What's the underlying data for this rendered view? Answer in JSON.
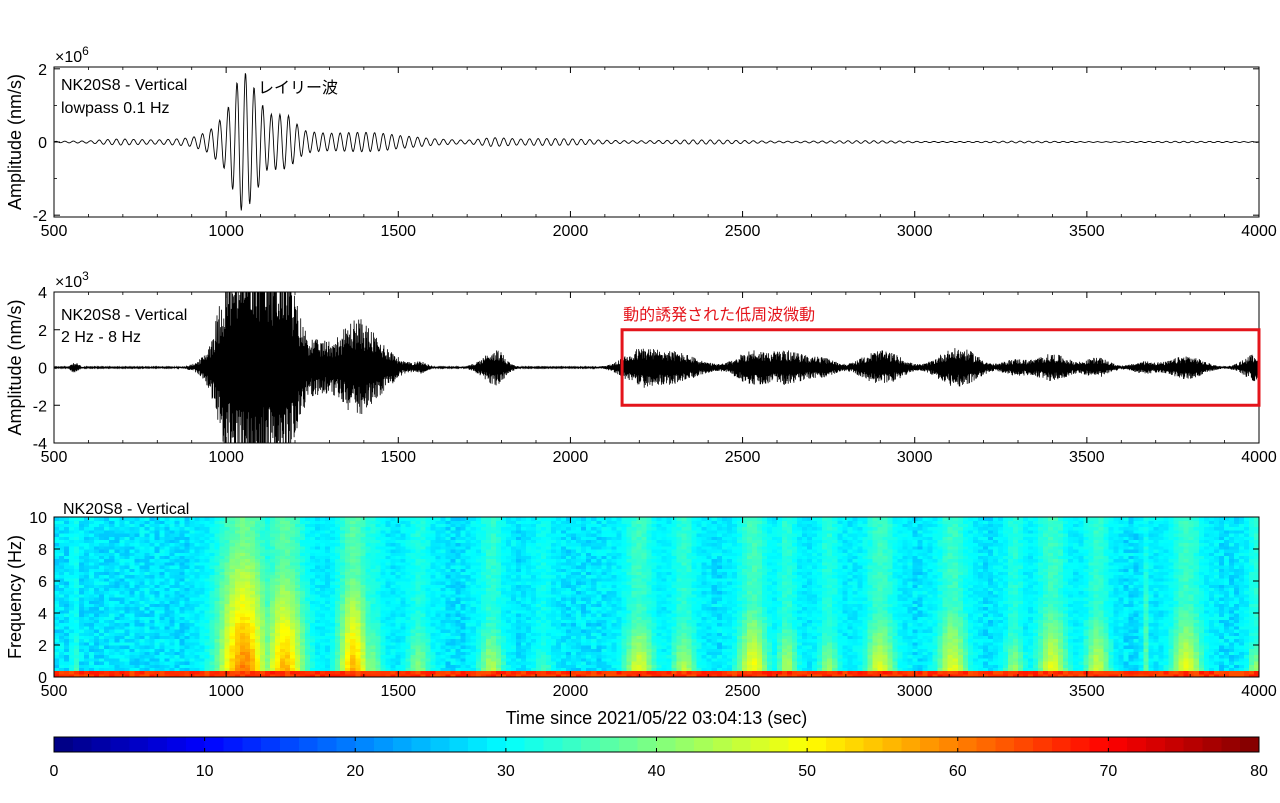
{
  "chart_data": [
    {
      "type": "line",
      "title": "",
      "station_label": "NK20S8 - Vertical",
      "filter_label": "lowpass 0.1 Hz",
      "annotation": "レイリー波",
      "ylabel": "Amplitude (nm/s)",
      "yexponent": "×10",
      "yexponent_power": "6",
      "xlim": [
        500,
        4000
      ],
      "ylim": [
        -2.05,
        2.05
      ],
      "xticks": [
        500,
        1000,
        1500,
        2000,
        2500,
        3000,
        3500,
        4000
      ],
      "yticks": [
        -2,
        0,
        2
      ],
      "ytick_labels": [
        "-2",
        "0",
        "2"
      ],
      "line_color": "#000000",
      "envelope": {
        "x": [
          500,
          600,
          700,
          800,
          900,
          950,
          1000,
          1030,
          1050,
          1080,
          1120,
          1180,
          1230,
          1300,
          1400,
          1500,
          1600,
          1700,
          1770,
          1850,
          2000,
          2200,
          2500,
          3000,
          3500,
          4000
        ],
        "amp": [
          0.02,
          0.03,
          0.12,
          0.12,
          0.18,
          0.35,
          0.8,
          1.6,
          2.0,
          1.6,
          0.9,
          1.15,
          0.6,
          0.45,
          0.32,
          0.18,
          0.12,
          0.1,
          0.22,
          0.1,
          0.09,
          0.07,
          0.05,
          0.03,
          0.02,
          0.02
        ]
      }
    },
    {
      "type": "line",
      "title": "",
      "station_label": "NK20S8 - Vertical",
      "filter_label": "2 Hz - 8 Hz",
      "annotation": "動的誘発された低周波微動",
      "annotation_box_x": [
        2150,
        4000
      ],
      "annotation_box_y": [
        -2,
        2
      ],
      "annotation_color": "#e4141b",
      "ylabel": "Amplitude (nm/s)",
      "yexponent": "×10",
      "yexponent_power": "3",
      "xlim": [
        500,
        4000
      ],
      "ylim": [
        -4,
        4
      ],
      "xticks": [
        500,
        1000,
        1500,
        2000,
        2500,
        3000,
        3500,
        4000
      ],
      "yticks": [
        -4,
        -2,
        0,
        2,
        4
      ],
      "ytick_labels": [
        "-4",
        "-2",
        "0",
        "2",
        "4"
      ],
      "line_color": "#000000",
      "bursts": [
        [
          560,
          5,
          0.25
        ],
        [
          1000,
          12,
          1.6
        ],
        [
          1040,
          25,
          3.6
        ],
        [
          1080,
          20,
          2.5
        ],
        [
          1130,
          18,
          1.6
        ],
        [
          1170,
          15,
          3.6
        ],
        [
          1230,
          30,
          1.0
        ],
        [
          1300,
          25,
          0.6
        ],
        [
          1380,
          18,
          2.0
        ],
        [
          1430,
          20,
          0.6
        ],
        [
          1470,
          15,
          0.5
        ],
        [
          1560,
          10,
          0.3
        ],
        [
          1770,
          15,
          0.6
        ],
        [
          1790,
          10,
          0.4
        ],
        [
          2200,
          20,
          0.9
        ],
        [
          2330,
          25,
          0.5
        ],
        [
          2280,
          20,
          0.4
        ],
        [
          2530,
          20,
          0.9
        ],
        [
          2620,
          15,
          0.7
        ],
        [
          2680,
          15,
          0.45
        ],
        [
          2740,
          15,
          0.4
        ],
        [
          2890,
          20,
          0.8
        ],
        [
          2950,
          15,
          0.3
        ],
        [
          3110,
          20,
          0.9
        ],
        [
          3170,
          15,
          0.4
        ],
        [
          3290,
          15,
          0.4
        ],
        [
          3400,
          20,
          0.7
        ],
        [
          3530,
          15,
          0.5
        ],
        [
          3670,
          15,
          0.3
        ],
        [
          3790,
          20,
          0.6
        ],
        [
          3990,
          15,
          0.7
        ]
      ]
    },
    {
      "type": "heatmap",
      "title": "",
      "station_label": "NK20S8 - Vertical",
      "xlabel": "Time since 2021/05/22 03:04:13 (sec)",
      "ylabel": "Frequency (Hz)",
      "xlim": [
        500,
        4000
      ],
      "ylim": [
        0,
        10
      ],
      "xticks": [
        500,
        1000,
        1500,
        2000,
        2500,
        3000,
        3500,
        4000
      ],
      "yticks": [
        0,
        2,
        4,
        6,
        8,
        10
      ],
      "colormap": "jet",
      "clim": [
        0,
        80
      ],
      "background_level": 28,
      "low_freq_band": {
        "fmax": 0.5,
        "level": 66
      },
      "bursts": [
        [
          560,
          3.0,
          40,
          6
        ],
        [
          1050,
          8.5,
          62,
          50
        ],
        [
          1170,
          7.0,
          58,
          40
        ],
        [
          1370,
          6.5,
          58,
          30
        ],
        [
          1420,
          4.0,
          42,
          25
        ],
        [
          1560,
          3.5,
          42,
          25
        ],
        [
          1770,
          3.5,
          46,
          25
        ],
        [
          1920,
          2.0,
          38,
          20
        ],
        [
          2200,
          4.0,
          50,
          30
        ],
        [
          2330,
          3.5,
          46,
          25
        ],
        [
          2530,
          4.5,
          52,
          30
        ],
        [
          2630,
          3.5,
          46,
          20
        ],
        [
          2750,
          3.0,
          44,
          20
        ],
        [
          2900,
          4.0,
          50,
          30
        ],
        [
          3110,
          4.5,
          50,
          30
        ],
        [
          3290,
          3.0,
          44,
          20
        ],
        [
          3400,
          4.5,
          50,
          30
        ],
        [
          3530,
          4.0,
          48,
          25
        ],
        [
          3670,
          8.5,
          38,
          6
        ],
        [
          3790,
          4.5,
          50,
          30
        ],
        [
          3990,
          2.5,
          44,
          15
        ]
      ]
    },
    {
      "type": "colorbar",
      "colormap": "jet",
      "range": [
        0,
        80
      ],
      "ticks": [
        0,
        10,
        20,
        30,
        40,
        50,
        60,
        70,
        80
      ],
      "tick_labels": [
        "0",
        "10",
        "20",
        "30",
        "40",
        "50",
        "60",
        "70",
        "80"
      ]
    }
  ]
}
